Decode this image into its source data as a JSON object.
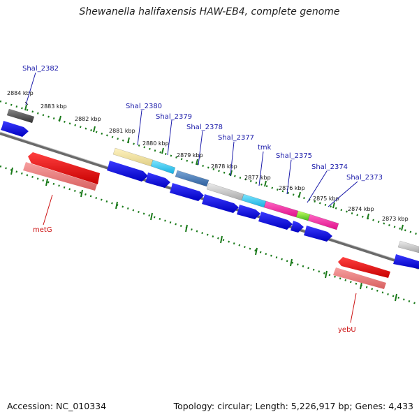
{
  "title": "Shewanella halifaxensis HAW-EB4, complete genome",
  "footer": {
    "accession": "Accession: NC_010334",
    "summary": "Topology: circular; Length: 5,226,917 bp; Genes: 4,433"
  },
  "ticks": [
    "2884 kbp",
    "2883 kbp",
    "2882 kbp",
    "2881 kbp",
    "2880 kbp",
    "2879 kbp",
    "2878 kbp",
    "2877 kbp",
    "2876 kbp",
    "2875 kbp",
    "2874 kbp",
    "2873 kbp"
  ],
  "forward_gene_labels": [
    "Shal_2382",
    "Shal_2380",
    "Shal_2379",
    "Shal_2378",
    "Shal_2377",
    "tmk",
    "Shal_2375",
    "Shal_2374",
    "Shal_2373"
  ],
  "reverse_gene_labels": [
    "metG",
    "yebU"
  ],
  "colors": {
    "forward_label": "#1a1aaa",
    "reverse_label": "#cc1111",
    "cds": "#1010e0",
    "reverse_gene": "#e01010",
    "reverse_gene_pale": "#ee8080",
    "dotted_track": "#1a7a1a",
    "backbone": "#777777"
  }
}
